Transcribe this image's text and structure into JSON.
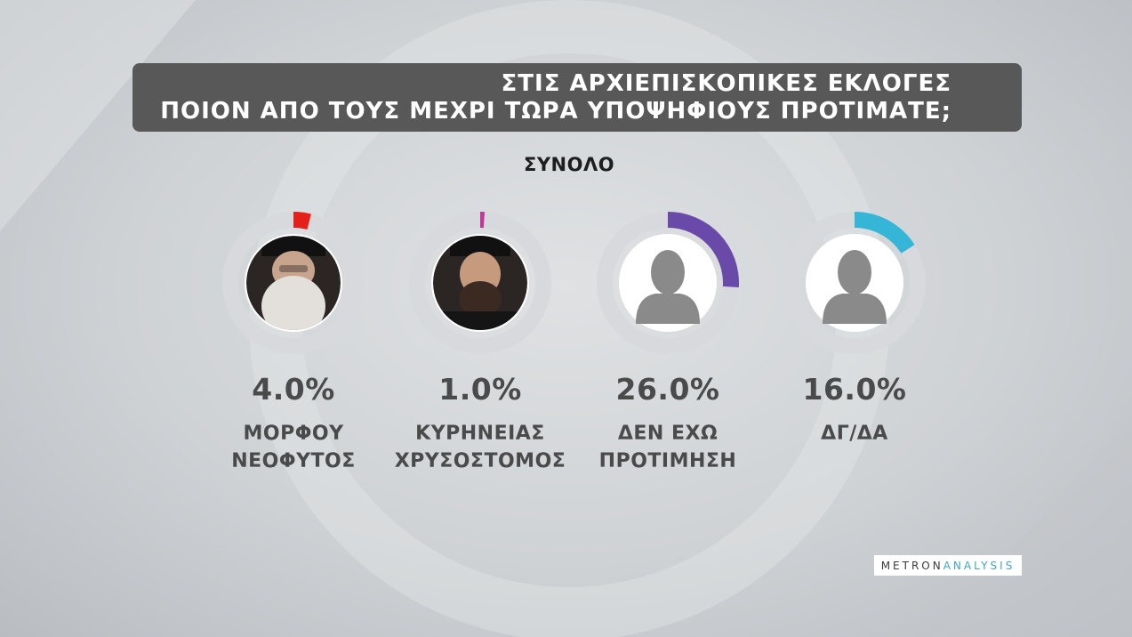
{
  "title": {
    "line1": "ΣΤΙΣ ΑΡΧΙΕΠΙΣΚΟΠΙΚΕΣ ΕΚΛΟΓΕΣ",
    "line2": "ΠΟΙΟΝ ΑΠΟ ΤΟΥΣ ΜΕΧΡΙ ΤΩΡΑ ΥΠΟΨΗΦΙΟΥΣ ΠΡΟΤΙΜΑΤΕ;"
  },
  "subtitle": "ΣΥΝΟΛΟ",
  "logo": {
    "part1": "METRON",
    "part2": "ANALYSIS"
  },
  "chart_data": {
    "type": "pie",
    "title": "ΣΤΙΣ ΑΡΧΙΕΠΙΣΚΟΠΙΚΕΣ ΕΚΛΟΓΕΣ ΠΟΙΟΝ ΑΠΟ ΤΟΥΣ ΜΕΧΡΙ ΤΩΡΑ ΥΠΟΨΗΦΙΟΥΣ ΠΡΟΤΙΜΑΤΕ;",
    "subtitle": "ΣΥΝΟΛΟ",
    "unit": "%",
    "categories": [
      "ΜΟΡΦΟΥ ΝΕΟΦΥΤΟΣ",
      "ΚΥΡΗΝΕΙΑΣ ΧΡΥΣΟΣΤΟΜΟΣ",
      "ΔΕΝ ΕΧΩ ΠΡΟΤΙΜΗΣΗ",
      "ΔΓ/ΔΑ"
    ],
    "items": [
      {
        "label": "ΜΟΡΦΟΥ\nΝΕΟΦΥΤΟΣ",
        "value": 4.0,
        "display": "4.0%",
        "color": "#e5201b",
        "avatar": "photo-bishop-white-beard"
      },
      {
        "label": "ΚΥΡΗΝΕΙΑΣ\nΧΡΥΣΟΣΤΟΜΟΣ",
        "value": 1.0,
        "display": "1.0%",
        "color": "#c2389a",
        "avatar": "photo-bishop-dark-beard"
      },
      {
        "label": "ΔΕΝ ΕΧΩ\nΠΡΟΤΙΜΗΣΗ",
        "value": 26.0,
        "display": "26.0%",
        "color": "#6a4aa8",
        "avatar": "person-silhouette-icon"
      },
      {
        "label": "ΔΓ/ΔΑ",
        "value": 16.0,
        "display": "16.0%",
        "color": "#35b6d6",
        "avatar": "person-silhouette-icon"
      }
    ]
  }
}
